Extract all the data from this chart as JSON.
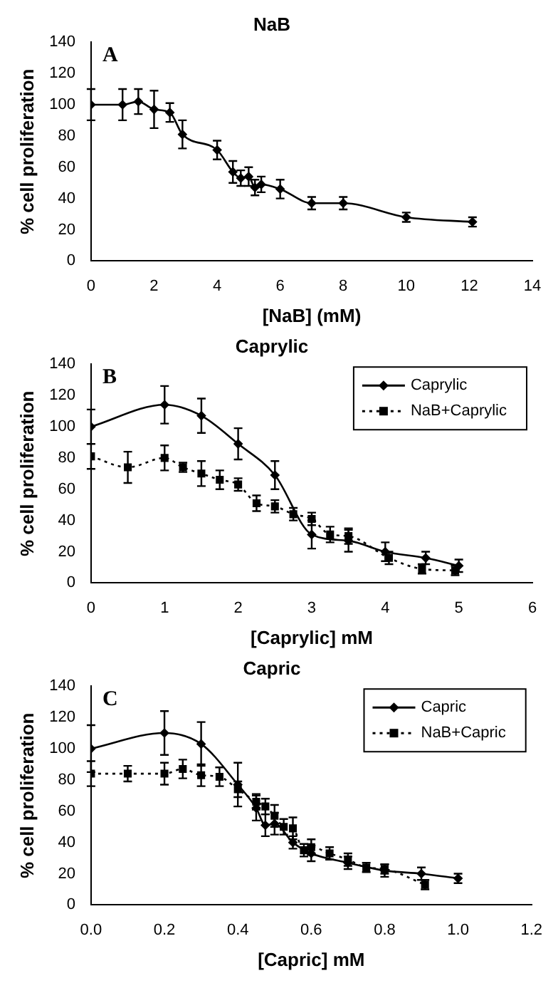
{
  "chart_data": [
    {
      "type": "line",
      "title": "NaB",
      "xlabel": "[NaB] (mM)",
      "ylabel": "% cell proliferation",
      "annotations": [
        "A"
      ],
      "xlim": [
        0,
        14
      ],
      "xticks": [
        0,
        2,
        4,
        6,
        8,
        10,
        12,
        14
      ],
      "ylim": [
        0,
        140
      ],
      "yticks": [
        0,
        20,
        40,
        60,
        80,
        100,
        120,
        140
      ],
      "grid": false,
      "legend": false,
      "marker": "diamond",
      "line_style": "solid",
      "series": [
        {
          "color": "#000000",
          "x": [
            0,
            1,
            1.5,
            2,
            2.5,
            2.9,
            4,
            4.5,
            4.75,
            5,
            5.2,
            5.4,
            6,
            7,
            8,
            10,
            12.1
          ],
          "values": [
            100,
            100,
            102,
            97,
            95,
            81,
            71,
            57,
            53,
            54,
            47,
            49,
            46,
            37,
            37,
            28,
            25
          ],
          "errors": [
            10,
            10,
            8,
            12,
            6,
            9,
            6,
            7,
            5,
            6,
            5,
            5,
            6,
            4,
            4,
            3,
            3
          ]
        }
      ]
    },
    {
      "type": "line",
      "title": "Caprylic",
      "xlabel": "[Caprylic] mM",
      "ylabel": "% cell proliferation",
      "annotations": [
        "B"
      ],
      "xlim": [
        0,
        6
      ],
      "xticks": [
        0,
        1,
        2,
        3,
        4,
        5,
        6
      ],
      "ylim": [
        0,
        140
      ],
      "yticks": [
        0,
        20,
        40,
        60,
        80,
        100,
        120,
        140
      ],
      "grid": false,
      "legend": "top right",
      "series": [
        {
          "name": "Caprylic",
          "color": "#000000",
          "marker": "diamond",
          "line_style": "solid",
          "x": [
            0,
            1,
            1.5,
            2,
            2.5,
            3,
            3.5,
            4,
            4.55,
            5
          ],
          "values": [
            100,
            114,
            107,
            89,
            69,
            31,
            27,
            20,
            16,
            11
          ],
          "errors": [
            11,
            12,
            11,
            10,
            9,
            9,
            7,
            6,
            4,
            4
          ]
        },
        {
          "name": "NaB+Caprylic",
          "color": "#000000",
          "marker": "square",
          "line_style": "dotted",
          "x": [
            0,
            0.5,
            1,
            1.25,
            1.5,
            1.75,
            2,
            2.25,
            2.5,
            2.75,
            3,
            3.25,
            3.5,
            4.05,
            4.5,
            4.95
          ],
          "values": [
            81,
            74,
            80,
            74,
            70,
            66,
            63,
            51,
            49,
            44,
            41,
            31,
            30,
            16,
            9,
            8
          ],
          "errors": [
            8,
            10,
            8,
            3,
            8,
            6,
            4,
            5,
            4,
            4,
            4,
            5,
            5,
            4,
            3,
            3
          ]
        }
      ]
    },
    {
      "type": "line",
      "title": "Capric",
      "xlabel": "[Capric] mM",
      "ylabel": "% cell proliferation",
      "annotations": [
        "C"
      ],
      "xlim": [
        0,
        1.2
      ],
      "xticks": [
        {
          "value": 0,
          "label": "0.0"
        },
        0.2,
        0.4,
        0.6,
        0.8,
        {
          "value": 1,
          "label": "1.0"
        },
        1.2
      ],
      "ylim": [
        0,
        140
      ],
      "yticks": [
        0,
        20,
        40,
        60,
        80,
        100,
        120,
        140
      ],
      "grid": false,
      "legend": "top right",
      "series": [
        {
          "name": "Capric",
          "color": "#000000",
          "marker": "diamond",
          "line_style": "solid",
          "x": [
            0,
            0.2,
            0.3,
            0.4,
            0.45,
            0.475,
            0.5,
            0.55,
            0.6,
            0.7,
            0.8,
            0.9,
            1.0
          ],
          "values": [
            100,
            110,
            103,
            77,
            62,
            51,
            52,
            40,
            33,
            27,
            22,
            20,
            17
          ],
          "errors": [
            15,
            14,
            14,
            14,
            8,
            7,
            7,
            4,
            5,
            4,
            4,
            4,
            3
          ]
        },
        {
          "name": "NaB+Capric",
          "color": "#000000",
          "marker": "square",
          "line_style": "dotted",
          "x": [
            0,
            0.1,
            0.2,
            0.25,
            0.3,
            0.35,
            0.4,
            0.45,
            0.475,
            0.5,
            0.525,
            0.55,
            0.58,
            0.6,
            0.65,
            0.7,
            0.75,
            0.8,
            0.91
          ],
          "values": [
            84,
            84,
            84,
            87,
            83,
            82,
            74,
            66,
            63,
            57,
            50,
            49,
            35,
            37,
            33,
            29,
            24,
            23,
            13
          ],
          "errors": [
            8,
            5,
            7,
            6,
            7,
            6,
            5,
            5,
            5,
            7,
            5,
            7,
            4,
            5,
            4,
            4,
            3,
            3,
            3
          ]
        }
      ]
    }
  ]
}
